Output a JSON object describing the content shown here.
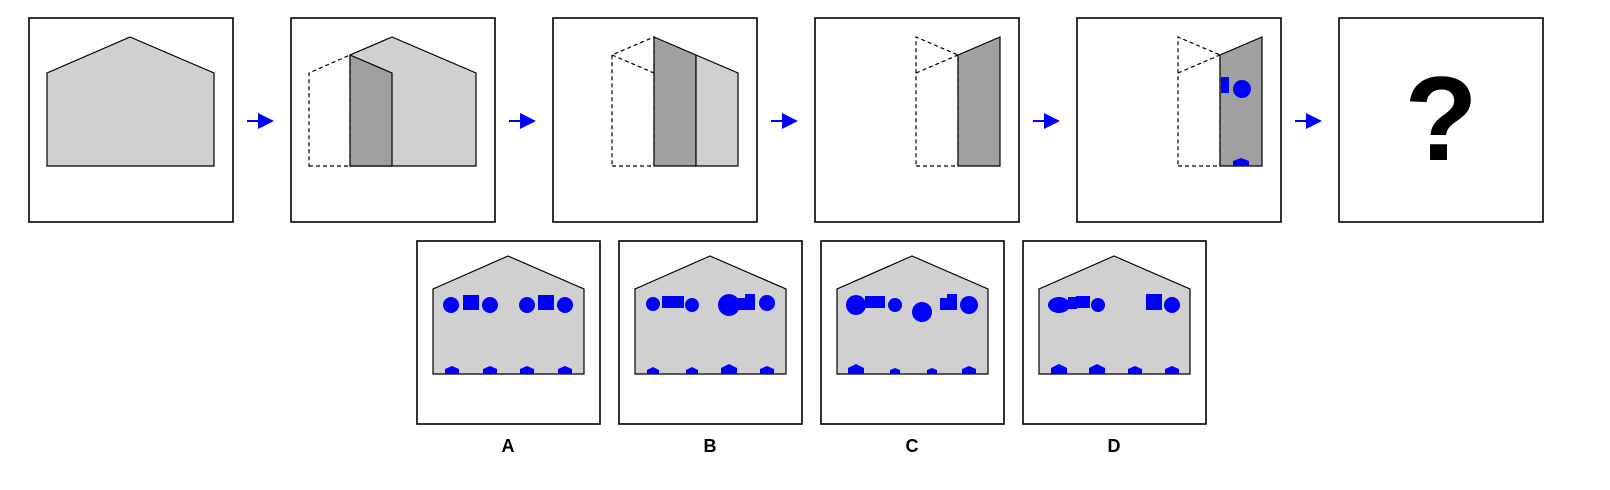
{
  "question_mark": "?",
  "options": [
    {
      "label": "A"
    },
    {
      "label": "B"
    },
    {
      "label": "C"
    },
    {
      "label": "D"
    }
  ],
  "colors": {
    "house_fill": "#d0d0d0",
    "strip_fill": "#a0a0a0",
    "marks": "#0000ff",
    "arrow": "#0000ff"
  },
  "icons": [
    "arrow-right-icon",
    "circle-icon",
    "square-icon",
    "pentagon-icon"
  ]
}
